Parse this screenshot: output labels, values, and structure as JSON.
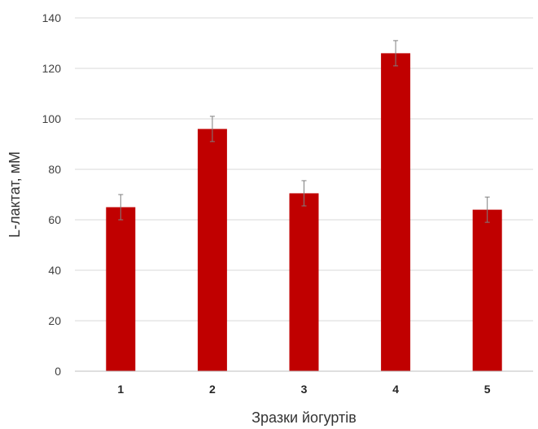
{
  "chart_data": {
    "type": "bar",
    "title": "",
    "xlabel": "Зразки йогуртів",
    "ylabel": "L-лактат, мМ",
    "categories": [
      "1",
      "2",
      "3",
      "4",
      "5"
    ],
    "values": [
      65,
      96,
      70.5,
      126,
      64
    ],
    "errors": [
      5,
      5,
      5,
      5,
      5
    ],
    "ylim": [
      0,
      140
    ],
    "yticks": [
      0,
      20,
      40,
      60,
      80,
      100,
      120,
      140
    ],
    "grid": true,
    "legend": "none",
    "colors": {
      "bar": "#c00000",
      "error": "#7f7f7f",
      "grid": "#d9d9d9"
    }
  }
}
